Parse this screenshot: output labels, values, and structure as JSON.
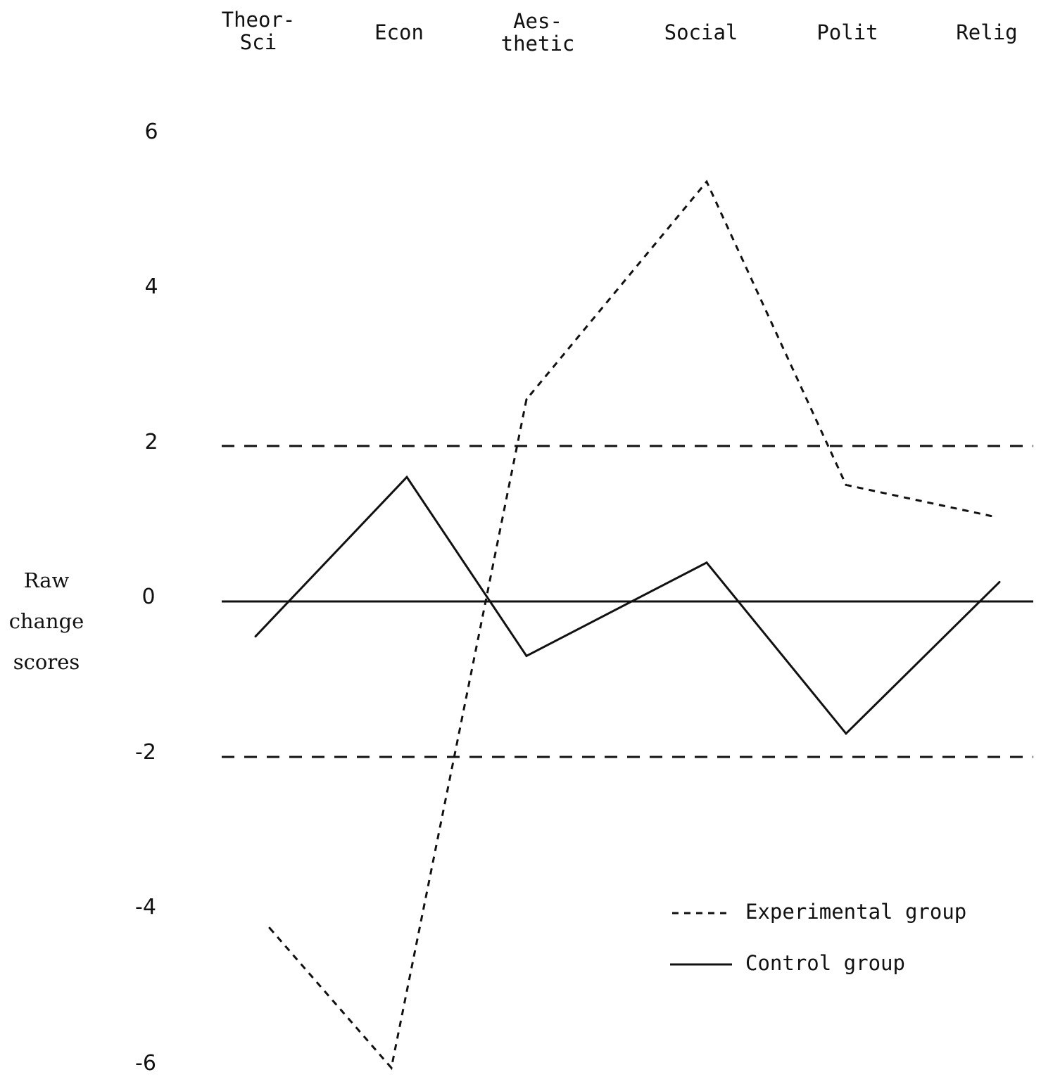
{
  "chart_data": {
    "type": "line",
    "categories": [
      "Theor-\nSci",
      "Econ",
      "Aes-\nthetic",
      "Social",
      "Polit",
      "Relig"
    ],
    "series": [
      {
        "name": "Experimental group",
        "style": "dashed",
        "values": [
          -4.2,
          -6.0,
          2.6,
          5.4,
          1.5,
          1.1
        ]
      },
      {
        "name": "Control group",
        "style": "solid",
        "values": [
          -0.45,
          1.6,
          -0.7,
          0.5,
          -1.7,
          0.25
        ]
      }
    ],
    "reference_lines": [
      {
        "value": 2,
        "style": "dashed"
      },
      {
        "value": 0,
        "style": "solid"
      },
      {
        "value": -2,
        "style": "dashed"
      }
    ],
    "yticks": [
      "6",
      "4",
      "2",
      "0",
      "-2",
      "-4",
      "-6"
    ],
    "ytick_values": [
      6,
      4,
      2,
      0,
      -2,
      -4,
      -6
    ],
    "ylabel": [
      "Raw",
      "change",
      "scores"
    ],
    "ylim": [
      -6,
      6
    ],
    "legend": {
      "position": "bottom-right",
      "items": [
        "Experimental group",
        "Control group"
      ]
    },
    "grid": false,
    "colors": {
      "line": "#111111",
      "background": "#ffffff"
    }
  }
}
